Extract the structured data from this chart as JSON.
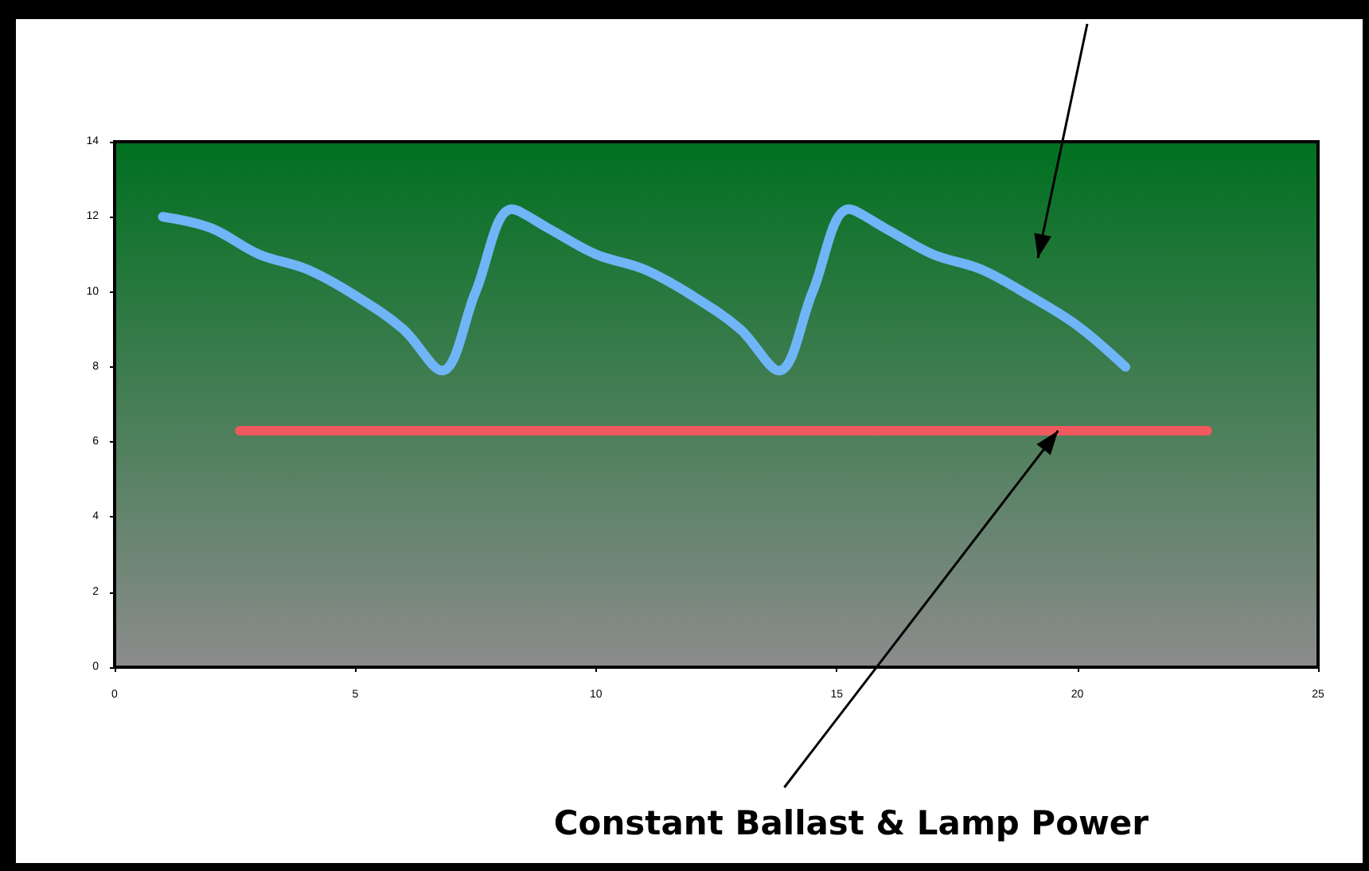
{
  "chart_data": {
    "type": "line",
    "x": [
      1,
      2,
      3,
      4,
      5,
      6,
      6.8,
      7.5,
      8.25,
      9,
      10,
      11,
      12,
      13,
      13.8,
      14.5,
      15.25,
      16,
      17,
      18,
      19,
      20,
      21
    ],
    "series": [
      {
        "color": "#6fb5f7",
        "values": [
          12,
          11.7,
          11,
          10.6,
          9.9,
          9,
          7.9,
          10,
          12.2,
          11.7,
          11,
          10.6,
          9.9,
          9,
          7.9,
          10,
          12.2,
          11.7,
          11,
          10.6,
          9.9,
          9.1,
          8
        ]
      },
      {
        "color": "#f05a5f",
        "x": [
          2.6,
          22.7
        ],
        "values": [
          6.3,
          6.3
        ]
      }
    ],
    "xlim": [
      0,
      25
    ],
    "xticks": [
      0,
      5,
      10,
      15,
      20,
      25
    ],
    "ylim": [
      0,
      14
    ],
    "yticks": [
      0,
      2,
      4,
      6,
      8,
      10,
      12,
      14
    ],
    "grid": false,
    "marker": "none",
    "annotations": [
      {
        "text": "Constant Ballast & Lamp Power",
        "x": 19.6,
        "y": 6.3
      }
    ]
  }
}
